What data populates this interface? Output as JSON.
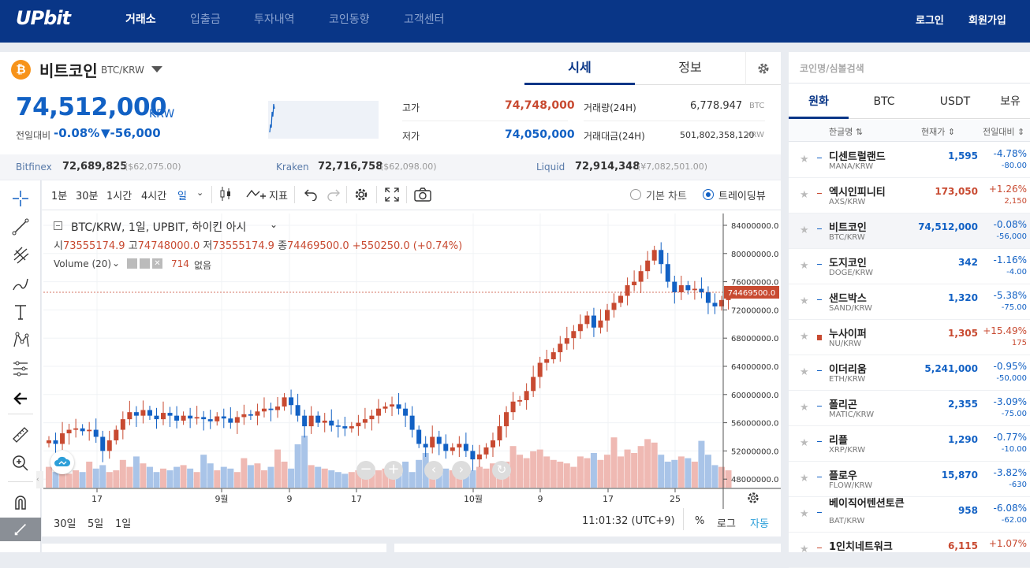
{
  "header": {
    "logo": "UPbit",
    "nav": [
      "거래소",
      "입출금",
      "투자내역",
      "코인동향",
      "고객센터"
    ],
    "login": "로그인",
    "signup": "회원가입"
  },
  "coin": {
    "icon_letter": "₿",
    "name": "비트코인",
    "pair": "BTC/KRW",
    "tabs": [
      "시세",
      "정보"
    ],
    "price": "74,512,000",
    "unit": "KRW",
    "change_label": "전일대비",
    "change_pct": "-0.08%",
    "change_amt": "▼-56,000",
    "high_label": "고가",
    "high": "74,748,000",
    "low_label": "저가",
    "low": "74,050,000",
    "vol_label": "거래량(24H)",
    "vol": "6,778.947",
    "vol_unit": "BTC",
    "amt_label": "거래대금(24H)",
    "amt": "501,802,358,120",
    "amt_unit": "KRW"
  },
  "exchanges": [
    {
      "name": "Bitfinex",
      "price": "72,689,825",
      "usd": "($62,075.00)"
    },
    {
      "name": "Kraken",
      "price": "72,716,758",
      "usd": "($62,098.00)"
    },
    {
      "name": "Liquid",
      "price": "72,914,348",
      "usd": "(¥7,082,501.00)"
    }
  ],
  "toolbar": {
    "intervals": [
      "1분",
      "30분",
      "1시간",
      "4시간",
      "일"
    ],
    "indicator": "지표",
    "basic_chart": "기본 차트",
    "tradingview": "트레이딩뷰"
  },
  "legend": {
    "title": "BTC/KRW, 1일, UPBIT, 하이킨 아시",
    "open_l": "시",
    "open": "73555174.9",
    "high_l": "고",
    "high": "74748000.0",
    "low_l": "저",
    "low": "73555174.9",
    "close_l": "종",
    "close": "74469500.0",
    "chg": "+550250.0 (+0.74%)",
    "volume": "Volume (20)",
    "vol_val": "714",
    "vol_none": "없음"
  },
  "chart_data": {
    "type": "candlestick",
    "price_axis": [
      "84000000.0",
      "80000000.0",
      "76000000.0",
      "72000000.0",
      "68000000.0",
      "64000000.0",
      "60000000.0",
      "56000000.0",
      "52000000.0",
      "48000000.0"
    ],
    "last_price": "74469500.0",
    "x_ticks": [
      "17",
      "9월",
      "9",
      "17",
      "10월",
      "9",
      "17",
      "25"
    ]
  },
  "footer": {
    "ranges": [
      "30일",
      "5일",
      "1일"
    ],
    "time": "11:01:32 (UTC+9)",
    "pct": "%",
    "log": "로그",
    "auto": "자동"
  },
  "sidebar": {
    "search": "코인명/심볼검색",
    "tabs": [
      "원화",
      "BTC",
      "USDT",
      "보유"
    ],
    "cols": [
      "한글명 ⇅",
      "현재가 ⇕",
      "전일대비 ⇕"
    ],
    "items": [
      {
        "name": "디센트럴랜드",
        "sym": "MANA/KRW",
        "price": "1,595",
        "pct": "-4.78%",
        "chg": "-80.00",
        "up": false
      },
      {
        "name": "엑시인피니티",
        "sym": "AXS/KRW",
        "price": "173,050",
        "pct": "+1.26%",
        "chg": "2,150",
        "up": true
      },
      {
        "name": "비트코인",
        "sym": "BTC/KRW",
        "price": "74,512,000",
        "pct": "-0.08%",
        "chg": "-56,000",
        "up": false
      },
      {
        "name": "도지코인",
        "sym": "DOGE/KRW",
        "price": "342",
        "pct": "-1.16%",
        "chg": "-4.00",
        "up": false
      },
      {
        "name": "샌드박스",
        "sym": "SAND/KRW",
        "price": "1,320",
        "pct": "-5.38%",
        "chg": "-75.00",
        "up": false
      },
      {
        "name": "누사이퍼",
        "sym": "NU/KRW",
        "price": "1,305",
        "pct": "+15.49%",
        "chg": "175",
        "up": true
      },
      {
        "name": "이더리움",
        "sym": "ETH/KRW",
        "price": "5,241,000",
        "pct": "-0.95%",
        "chg": "-50,000",
        "up": false
      },
      {
        "name": "폴리곤",
        "sym": "MATIC/KRW",
        "price": "2,355",
        "pct": "-3.09%",
        "chg": "-75.00",
        "up": false
      },
      {
        "name": "리플",
        "sym": "XRP/KRW",
        "price": "1,290",
        "pct": "-0.77%",
        "chg": "-10.00",
        "up": false
      },
      {
        "name": "플로우",
        "sym": "FLOW/KRW",
        "price": "15,870",
        "pct": "-3.82%",
        "chg": "-630",
        "up": false
      },
      {
        "name": "베이직어텐션토큰",
        "sym": "BAT/KRW",
        "price": "958",
        "pct": "-6.08%",
        "chg": "-62.00",
        "up": false
      },
      {
        "name": "1인치네트워크",
        "sym": "",
        "price": "6,115",
        "pct": "+1.07%",
        "chg": "",
        "up": true
      }
    ]
  }
}
